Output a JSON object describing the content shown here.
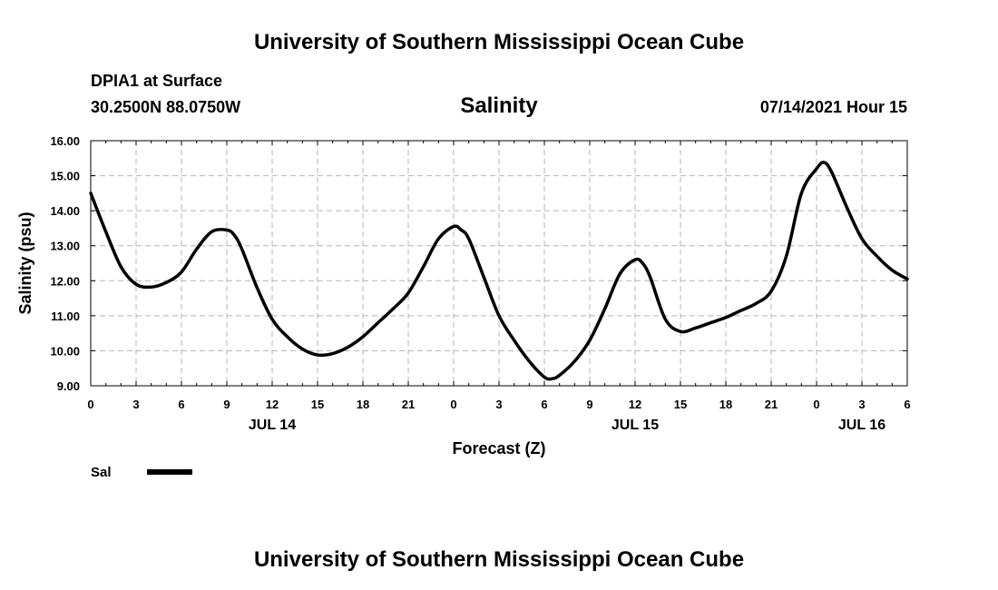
{
  "header": {
    "top_title": "University of Southern Mississippi Ocean Cube",
    "station": "DPIA1 at Surface",
    "coords": "30.2500N  88.0750W",
    "datetime": "07/14/2021 Hour 15",
    "bottom_title": "University of Southern Mississippi Ocean Cube"
  },
  "chart_data": {
    "type": "line",
    "title": "Salinity",
    "xlabel": "Forecast (Z)",
    "ylabel": "Salinity (psu)",
    "ylim": [
      9.0,
      16.0
    ],
    "yticks": [
      "9.00",
      "10.00",
      "11.00",
      "12.00",
      "13.00",
      "14.00",
      "15.00",
      "16.00"
    ],
    "xlim": [
      0,
      54
    ],
    "xtick_labels": [
      "0",
      "3",
      "6",
      "9",
      "12",
      "15",
      "18",
      "21",
      "0",
      "3",
      "6",
      "9",
      "12",
      "15",
      "18",
      "21",
      "0",
      "3",
      "6"
    ],
    "day_labels": [
      {
        "label": "JUL 14",
        "hour": 12
      },
      {
        "label": "JUL 15",
        "hour": 36
      },
      {
        "label": "JUL 16",
        "hour": 51
      }
    ],
    "grid": true,
    "legend_position": "bottom-left",
    "series": [
      {
        "name": "Sal",
        "color": "#000000",
        "x": [
          0,
          1,
          2,
          3,
          4,
          5,
          6,
          7,
          8,
          9,
          9.5,
          10,
          11,
          12,
          13,
          14,
          15,
          16,
          17,
          18,
          19,
          20,
          21,
          22,
          23,
          24,
          24.5,
          25,
          26,
          27,
          28,
          29,
          30,
          30.5,
          31,
          32,
          33,
          34,
          35,
          36,
          36.5,
          37,
          38,
          39,
          40,
          41,
          42,
          43,
          44,
          45,
          46,
          47,
          48,
          48.5,
          49,
          50,
          51,
          52,
          53,
          54
        ],
        "values": [
          14.5,
          13.4,
          12.4,
          11.9,
          11.82,
          11.95,
          12.25,
          12.9,
          13.4,
          13.45,
          13.3,
          12.9,
          11.8,
          10.9,
          10.4,
          10.05,
          9.88,
          9.92,
          10.1,
          10.4,
          10.8,
          11.2,
          11.65,
          12.4,
          13.2,
          13.55,
          13.45,
          13.2,
          12.1,
          11.0,
          10.3,
          9.7,
          9.25,
          9.2,
          9.3,
          9.7,
          10.3,
          11.2,
          12.2,
          12.6,
          12.5,
          12.1,
          10.9,
          10.55,
          10.65,
          10.8,
          10.95,
          11.15,
          11.35,
          11.7,
          12.7,
          14.5,
          15.2,
          15.38,
          15.1,
          14.1,
          13.2,
          12.7,
          12.3,
          12.05
        ]
      }
    ]
  }
}
